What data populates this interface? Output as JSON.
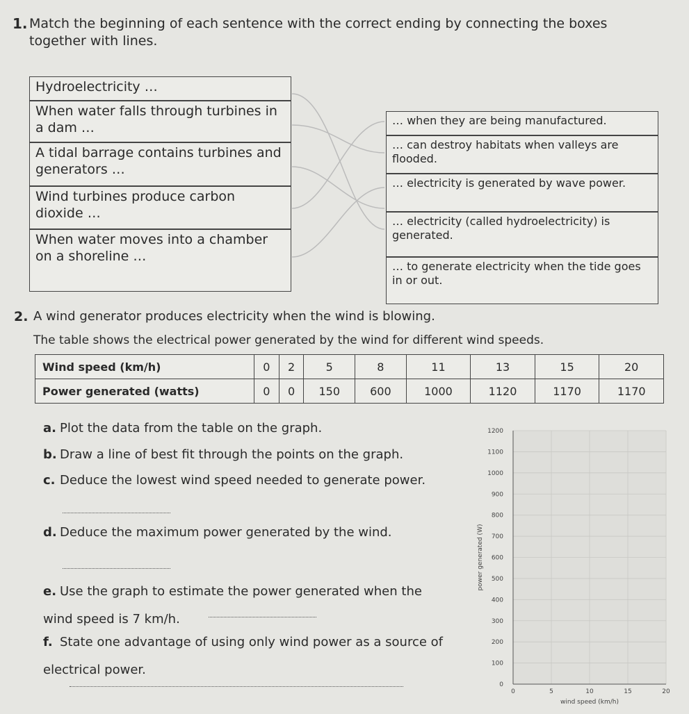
{
  "question1": {
    "number": "1.",
    "prompt": "Match the beginning of each sentence with the correct ending by connecting the boxes together with lines.",
    "left_boxes": [
      "Hydroelectricity …",
      "When water falls through turbines in a dam …",
      "A tidal barrage contains turbines and generators …",
      "Wind turbines produce carbon dioxide …",
      "When water moves into a chamber on a shoreline …"
    ],
    "right_boxes": [
      "… when they are being manufactured.",
      "… can destroy habitats when valleys are flooded.",
      "… electricity is generated by wave power.",
      "… electricity (called hydroelectricity) is generated.",
      "… to generate electricity when the tide goes in or out."
    ]
  },
  "question2": {
    "number": "2.",
    "intro": "A wind generator produces electricity when the wind is blowing.",
    "table_intro": "The table shows the electrical power generated by the wind for different wind speeds.",
    "table": {
      "rows": [
        [
          "Wind speed (km/h)",
          "0",
          "2",
          "5",
          "8",
          "11",
          "13",
          "15",
          "20"
        ],
        [
          "Power generated (watts)",
          "0",
          "0",
          "150",
          "600",
          "1000",
          "1120",
          "1170",
          "1170"
        ]
      ]
    },
    "parts": [
      {
        "letter": "a.",
        "text": "Plot the data from the table on the graph."
      },
      {
        "letter": "b.",
        "text": "Draw a line of best fit through the points on the graph."
      },
      {
        "letter": "c.",
        "text": "Deduce the lowest wind speed needed to generate power."
      },
      {
        "letter": "d.",
        "text": "Deduce the maximum power generated by the wind."
      },
      {
        "letter": "e.",
        "text": "Use the graph to estimate the power generated when the wind speed is 7 km/h."
      },
      {
        "letter": "f.",
        "text": "State one advantage of using only wind power as a source of electrical power."
      }
    ],
    "graph": {
      "y_label": "power generated (W)",
      "x_label": "wind speed (km/h)",
      "xlim": [
        0,
        20
      ],
      "ylim": [
        0,
        1200
      ],
      "xticks": [
        0,
        5,
        10,
        15,
        20
      ],
      "yticks": [
        0,
        100,
        200,
        300,
        400,
        500,
        600,
        700,
        800,
        900,
        1000,
        1100,
        1200
      ]
    }
  }
}
